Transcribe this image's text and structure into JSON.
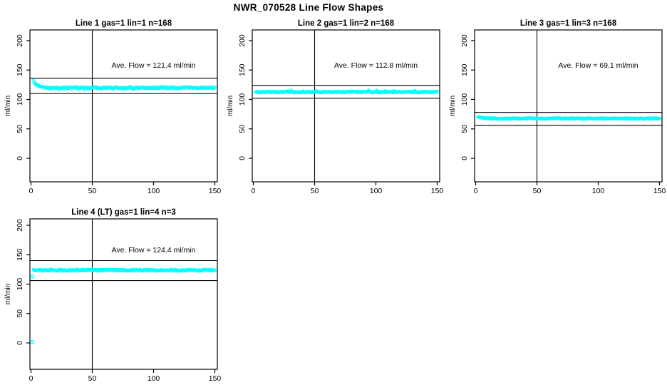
{
  "main_title": "NWR_070528  Line Flow Shapes",
  "colors": {
    "point_color": "#00ffff",
    "axis_color": "#000000",
    "background": "#ffffff"
  },
  "chart_data": [
    {
      "type": "scatter",
      "title": "Line 1 gas=1 lin=1 n=168",
      "annotation": "Ave. Flow =  121.4  ml/min",
      "ave_flow_ml_min": 121.4,
      "n": 168,
      "xlabel": "",
      "ylabel": "ml/min",
      "x_ticks": [
        0,
        50,
        100,
        150
      ],
      "y_ticks": [
        0,
        50,
        100,
        150,
        200
      ],
      "xlim": [
        -2,
        153
      ],
      "ylim": [
        -40,
        218
      ],
      "grid": false,
      "legend": "none",
      "marker": "open-circle",
      "vline_x": 50,
      "hlines": [
        136,
        110
      ],
      "series": [
        {
          "name": "flow",
          "x_start": 2,
          "x_end": 150,
          "baseline": 119.8,
          "start_value": 131.5,
          "decay_const": 3.0,
          "noise_amp": 1.3,
          "spike": -2.4,
          "spike_prob": 0.06,
          "outliers": []
        }
      ]
    },
    {
      "type": "scatter",
      "title": "Line 2 gas=1 lin=2 n=168",
      "annotation": "Ave. Flow =  112.8  ml/min",
      "ave_flow_ml_min": 112.8,
      "n": 168,
      "xlabel": "",
      "ylabel": "ml/min",
      "x_ticks": [
        0,
        50,
        100,
        150
      ],
      "y_ticks": [
        0,
        50,
        100,
        150,
        200
      ],
      "xlim": [
        -2,
        153
      ],
      "ylim": [
        -40,
        218
      ],
      "grid": false,
      "legend": "none",
      "marker": "open-circle",
      "vline_x": 50,
      "hlines": [
        124,
        102
      ],
      "series": [
        {
          "name": "flow",
          "x_start": 2,
          "x_end": 150,
          "baseline": 112.6,
          "start_value": 112.6,
          "decay_const": 0,
          "noise_amp": 0.9,
          "spike": 1.8,
          "spike_prob": 0.05,
          "outliers": []
        }
      ]
    },
    {
      "type": "scatter",
      "title": "Line 3 gas=1 lin=3 n=168",
      "annotation": "Ave. Flow =  69.1  ml/min",
      "ave_flow_ml_min": 69.1,
      "n": 168,
      "xlabel": "",
      "ylabel": "ml/min",
      "x_ticks": [
        0,
        50,
        100,
        150
      ],
      "y_ticks": [
        0,
        50,
        100,
        150,
        200
      ],
      "xlim": [
        -2,
        153
      ],
      "ylim": [
        -40,
        218
      ],
      "grid": false,
      "legend": "none",
      "marker": "open-circle",
      "vline_x": 50,
      "hlines": [
        78,
        56
      ],
      "series": [
        {
          "name": "flow",
          "x_start": 2,
          "x_end": 150,
          "baseline": 67.6,
          "start_value": 71.0,
          "decay_const": 2.5,
          "noise_amp": 0.8,
          "spike": 0,
          "spike_prob": 0,
          "outliers": []
        }
      ]
    },
    {
      "type": "scatter",
      "title": "Line 4 (LT) gas=1 lin=4 n=3",
      "annotation": "Ave. Flow =  124.4  ml/min",
      "ave_flow_ml_min": 124.4,
      "n": 3,
      "xlabel": "",
      "ylabel": "ml/min",
      "x_ticks": [
        0,
        50,
        100,
        150
      ],
      "y_ticks": [
        0,
        50,
        100,
        150,
        200
      ],
      "xlim": [
        -2,
        153
      ],
      "ylim": [
        -40,
        218
      ],
      "grid": false,
      "legend": "none",
      "marker": "open-circle",
      "vline_x": 50,
      "hlines": [
        140,
        106
      ],
      "series": [
        {
          "name": "flow",
          "x_start": 2,
          "x_end": 150,
          "baseline": 123.6,
          "start_value": 123.6,
          "decay_const": 0,
          "noise_amp": 1.2,
          "spike": 0,
          "spike_prob": 0,
          "outliers": [
            [
              1,
              113
            ],
            [
              1,
              1.5
            ]
          ]
        }
      ]
    }
  ]
}
